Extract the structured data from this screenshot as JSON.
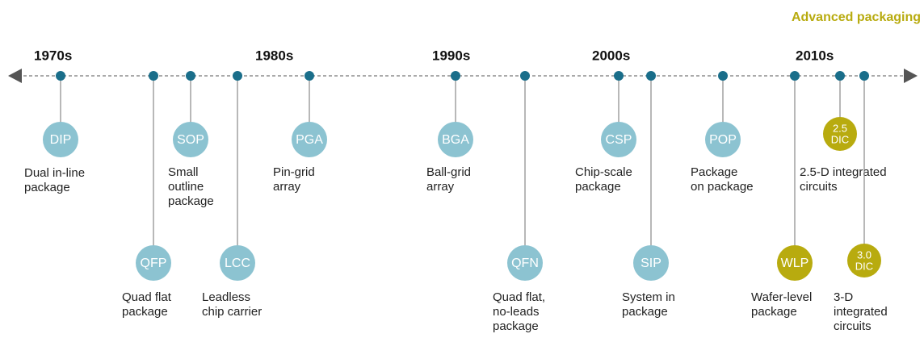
{
  "header": {
    "title": "Advanced packaging"
  },
  "decades": [
    "1970s",
    "1980s",
    "1990s",
    "2000s",
    "2010s"
  ],
  "nodes": [
    {
      "abbr": [
        "DIP"
      ],
      "description": [
        "Dual in-line",
        "package"
      ],
      "advanced": false
    },
    {
      "abbr": [
        "QFP"
      ],
      "description": [
        "Quad flat",
        "package"
      ],
      "advanced": false
    },
    {
      "abbr": [
        "SOP"
      ],
      "description": [
        "Small",
        "outline",
        "package"
      ],
      "advanced": false
    },
    {
      "abbr": [
        "LCC"
      ],
      "description": [
        "Leadless",
        "chip carrier"
      ],
      "advanced": false
    },
    {
      "abbr": [
        "PGA"
      ],
      "description": [
        "Pin-grid",
        "array"
      ],
      "advanced": false
    },
    {
      "abbr": [
        "BGA"
      ],
      "description": [
        "Ball-grid",
        "array"
      ],
      "advanced": false
    },
    {
      "abbr": [
        "QFN"
      ],
      "description": [
        "Quad flat,",
        "no-leads",
        "package"
      ],
      "advanced": false
    },
    {
      "abbr": [
        "CSP"
      ],
      "description": [
        "Chip-scale",
        "package"
      ],
      "advanced": false
    },
    {
      "abbr": [
        "SIP"
      ],
      "description": [
        "System in",
        "package"
      ],
      "advanced": false
    },
    {
      "abbr": [
        "POP"
      ],
      "description": [
        "Package",
        "on package"
      ],
      "advanced": false
    },
    {
      "abbr": [
        "WLP"
      ],
      "description": [
        "Wafer-level",
        "package"
      ],
      "advanced": true
    },
    {
      "abbr": [
        "2.5",
        "DIC"
      ],
      "description": [
        "2.5-D integrated",
        "circuits"
      ],
      "advanced": true
    },
    {
      "abbr": [
        "3.0",
        "DIC"
      ],
      "description": [
        "3-D",
        "integrated",
        "circuits"
      ],
      "advanced": true
    }
  ]
}
